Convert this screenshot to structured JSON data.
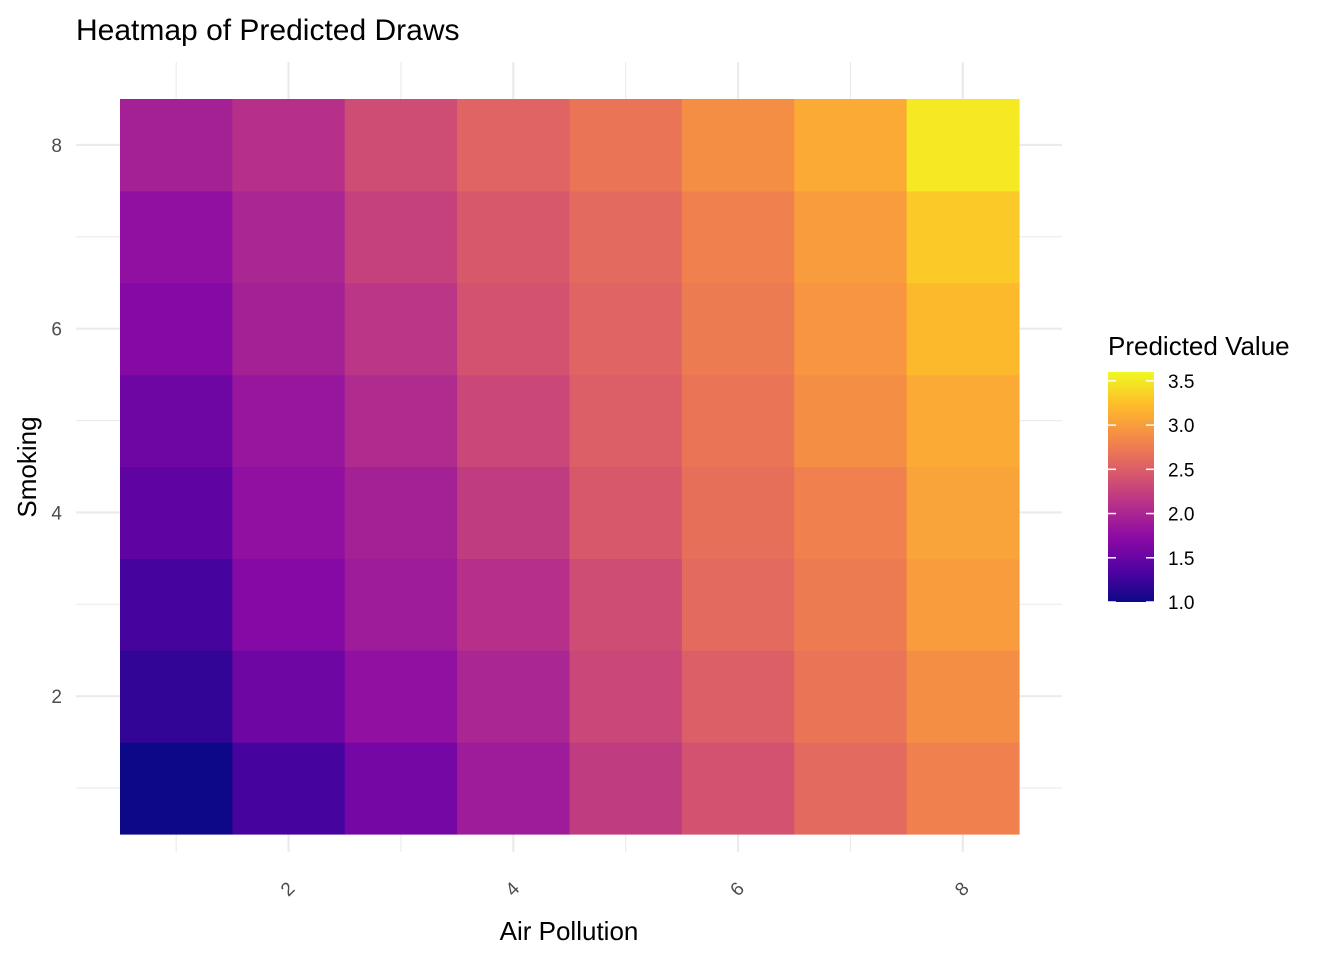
{
  "chart_data": {
    "type": "heatmap",
    "title": "Heatmap of Predicted Draws",
    "xlabel": "Air Pollution",
    "ylabel": "Smoking",
    "x": [
      1,
      2,
      3,
      4,
      5,
      6,
      7,
      8
    ],
    "y": [
      1,
      2,
      3,
      4,
      5,
      6,
      7,
      8
    ],
    "x_ticks": [
      "2",
      "4",
      "6",
      "8"
    ],
    "y_ticks": [
      "2",
      "4",
      "6",
      "8"
    ],
    "x_tick_values": [
      2,
      4,
      6,
      8
    ],
    "y_tick_values": [
      2,
      4,
      6,
      8
    ],
    "xlim": [
      0.5,
      8.5
    ],
    "ylim": [
      0.5,
      8.5
    ],
    "z": [
      [
        1.0,
        1.3,
        1.6,
        1.9,
        2.2,
        2.4,
        2.6,
        2.8
      ],
      [
        1.2,
        1.55,
        1.8,
        2.0,
        2.3,
        2.5,
        2.7,
        2.9
      ],
      [
        1.3,
        1.7,
        1.9,
        2.1,
        2.35,
        2.6,
        2.75,
        3.0
      ],
      [
        1.45,
        1.8,
        1.95,
        2.2,
        2.45,
        2.65,
        2.8,
        3.05
      ],
      [
        1.55,
        1.85,
        2.05,
        2.3,
        2.5,
        2.7,
        2.9,
        3.1
      ],
      [
        1.7,
        1.95,
        2.15,
        2.4,
        2.55,
        2.75,
        2.95,
        3.2
      ],
      [
        1.8,
        2.0,
        2.25,
        2.45,
        2.6,
        2.8,
        3.0,
        3.3
      ],
      [
        1.95,
        2.1,
        2.35,
        2.55,
        2.7,
        2.9,
        3.1,
        3.5
      ]
    ],
    "legend": {
      "title": "Predicted Value",
      "labels": [
        "1.0",
        "1.5",
        "2.0",
        "2.5",
        "3.0",
        "3.5"
      ],
      "values": [
        1.0,
        1.5,
        2.0,
        2.5,
        3.0,
        3.5
      ],
      "range": [
        1.0,
        3.6
      ],
      "placement": "right"
    },
    "colorscale": "plasma",
    "colors": [
      "#0d0887",
      "#5302a3",
      "#8b0aa5",
      "#b83289",
      "#db5c68",
      "#f48849",
      "#febd2a",
      "#f0f921"
    ],
    "grid": true,
    "x_tick_rotation": -45
  }
}
